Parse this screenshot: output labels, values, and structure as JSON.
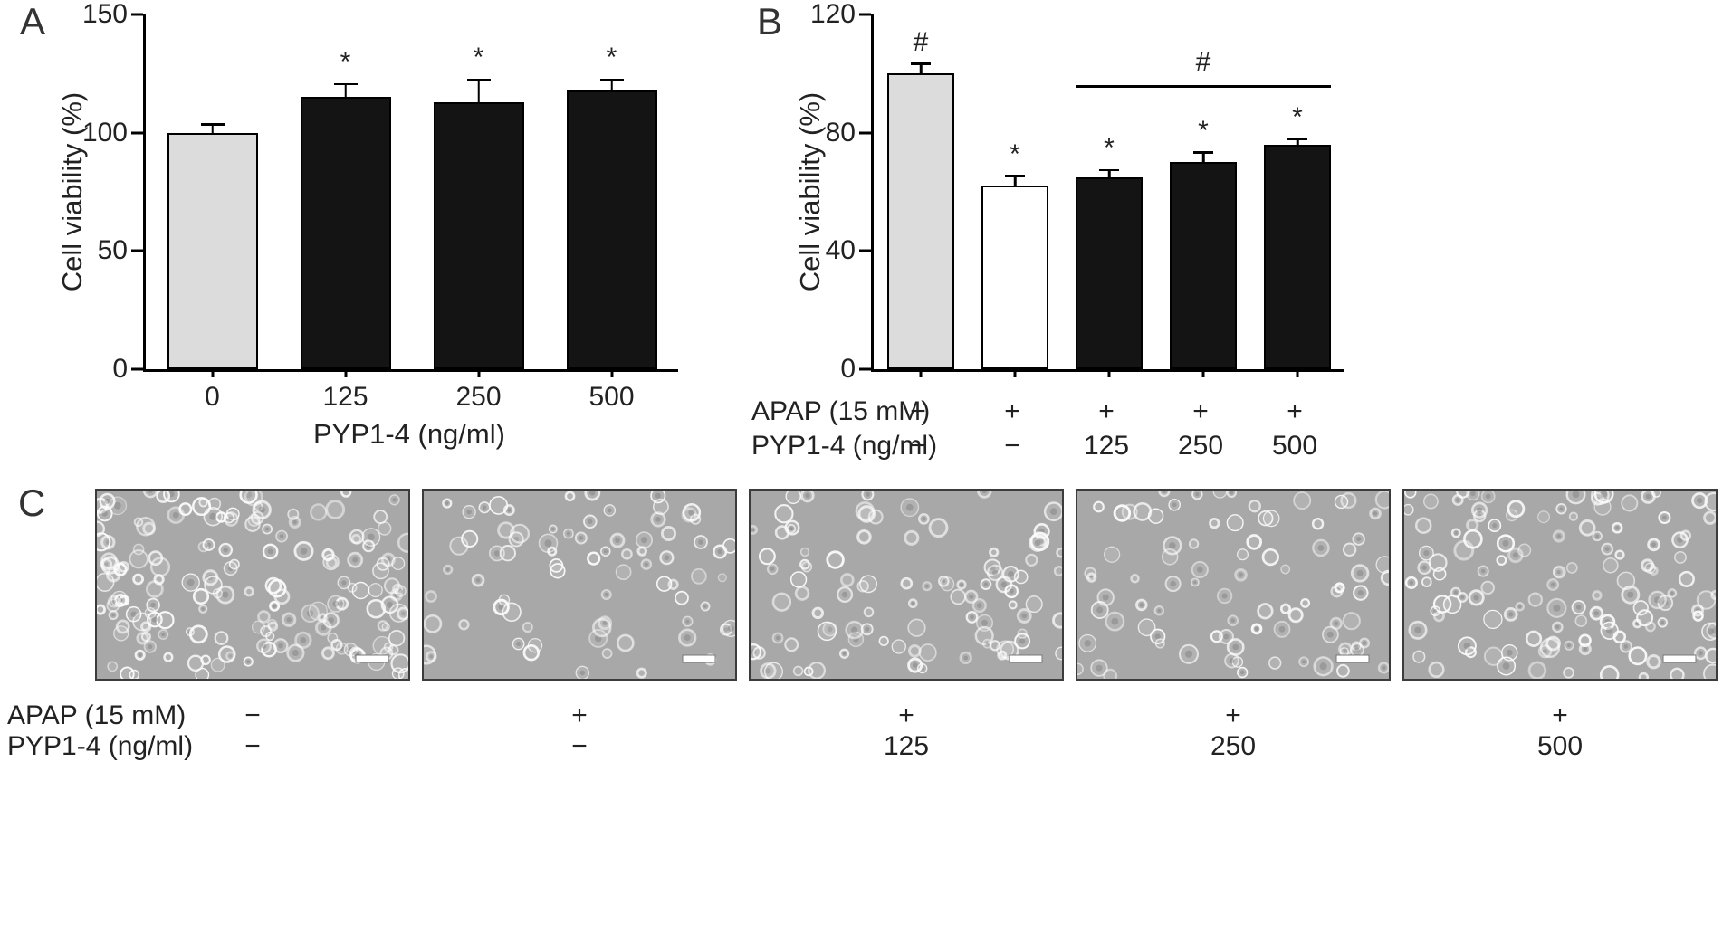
{
  "figure": {
    "panels": [
      {
        "letter": "A"
      },
      {
        "letter": "B"
      },
      {
        "letter": "C"
      }
    ]
  },
  "chart_data": [
    {
      "type": "bar",
      "panel": "A",
      "title": "",
      "ylabel": "Cell viability (%)",
      "xlabel": "PYP1-4 (ng/ml)",
      "ylim": [
        0,
        150
      ],
      "yticks": [
        0,
        50,
        100,
        150
      ],
      "categories": [
        "0",
        "125",
        "250",
        "500"
      ],
      "values": [
        100,
        115,
        113,
        118
      ],
      "errors": [
        3,
        5,
        9,
        4
      ],
      "annotations": [
        "",
        "*",
        "*",
        "*"
      ],
      "bar_colors": [
        "#dcdcdc",
        "#141414",
        "#141414",
        "#141414"
      ],
      "grid": false,
      "legend": false
    },
    {
      "type": "bar",
      "panel": "B",
      "title": "",
      "ylabel": "Cell viability (%)",
      "xlabel": "",
      "ylim": [
        0,
        120
      ],
      "yticks": [
        0,
        40,
        80,
        120
      ],
      "condition_rows": {
        "labels": [
          "APAP (15 mM)",
          "PYP1-4 (ng/ml)"
        ],
        "values": [
          [
            "−",
            "+",
            "+",
            "+",
            "+"
          ],
          [
            "−",
            "−",
            "125",
            "250",
            "500"
          ]
        ]
      },
      "values": [
        100,
        62,
        65,
        70,
        76
      ],
      "errors": [
        3,
        3,
        2,
        3,
        1.5
      ],
      "annotations": [
        "#",
        "*",
        "*",
        "*",
        "*"
      ],
      "bar_colors": [
        "#dcdcdc",
        "#ffffff",
        "#141414",
        "#141414",
        "#141414"
      ],
      "bracket": {
        "from_index": 2,
        "to_index": 4,
        "label": "#",
        "y_value": 96
      },
      "grid": false,
      "legend": false
    }
  ],
  "panel_c": {
    "condition_rows": {
      "labels": [
        "APAP (15 mM)",
        "PYP1-4 (ng/ml)"
      ],
      "values": [
        [
          "−",
          "+",
          "+",
          "+",
          "+"
        ],
        [
          "−",
          "−",
          "125",
          "250",
          "500"
        ]
      ]
    },
    "micrograph_count": 5,
    "approx_cell_counts": [
      170,
      75,
      95,
      85,
      125
    ],
    "scale_bar": "present"
  }
}
